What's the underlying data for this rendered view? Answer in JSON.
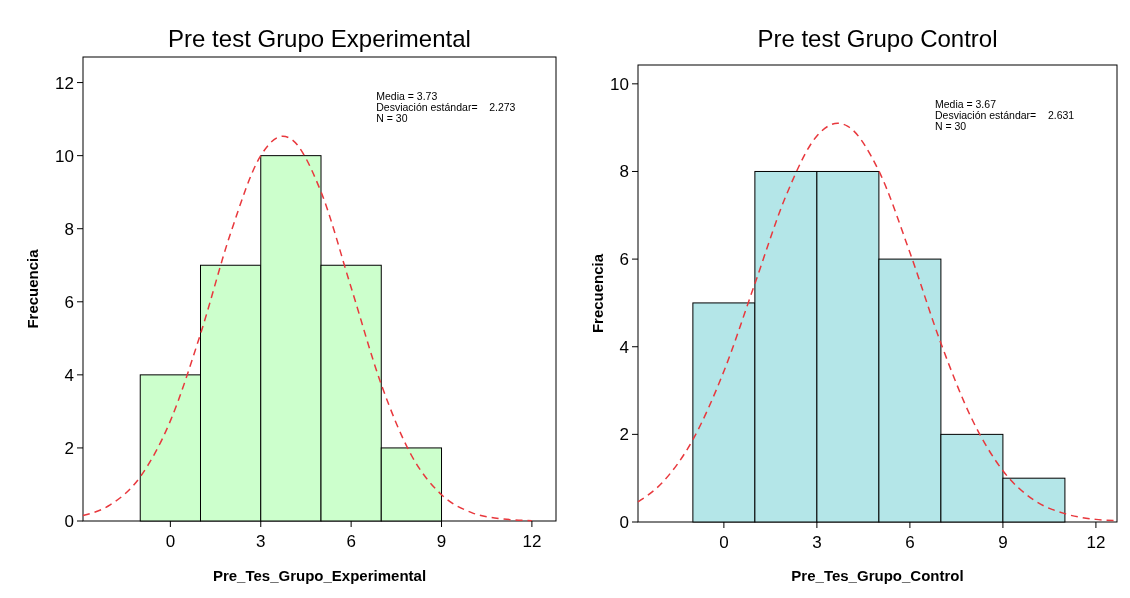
{
  "chart_data": [
    {
      "type": "histogram",
      "title": "Pre test Grupo Experimental",
      "xlabel": "Pre_Tes_Grupo_Experimental",
      "ylabel": "Frecuencia",
      "bins": [
        -1,
        1,
        3,
        5,
        7,
        9
      ],
      "values": [
        4,
        7,
        10,
        7,
        2
      ],
      "color": "#ccffcc",
      "series": [
        {
          "type": "line",
          "color": "#e8383d",
          "line_style": "dashed",
          "x": [
            -2.9,
            -2,
            -1,
            0,
            1,
            2,
            3,
            3.73,
            4,
            5,
            6,
            7,
            8,
            9,
            10,
            11,
            12
          ],
          "values": [
            0.15,
            0.44,
            1.21,
            2.74,
            5.12,
            7.88,
            10.0,
            10.53,
            10.46,
            9.01,
            6.39,
            3.74,
            1.8,
            0.72,
            0.23,
            0.06,
            0.01
          ]
        }
      ],
      "xlim": [
        -2.9,
        12.8
      ],
      "xticks": [
        0,
        3,
        6,
        9,
        12
      ],
      "ylim": [
        0,
        12.7
      ],
      "yticks": [
        0,
        2,
        4,
        6,
        8,
        10,
        12
      ],
      "annotations": [
        "Media = 3.73",
        "Desviación estándar=    2.273",
        "N = 30"
      ],
      "grid": false,
      "marker": "none"
    },
    {
      "type": "histogram",
      "title": "Pre test Grupo Control",
      "xlabel": "Pre_Tes_Grupo_Control",
      "ylabel": "Frecuencia",
      "bins": [
        -1,
        1,
        3,
        5,
        7,
        9,
        11
      ],
      "values": [
        5,
        8,
        8,
        6,
        2,
        1
      ],
      "color": "#b4e6e8",
      "series": [
        {
          "type": "line",
          "color": "#e8383d",
          "line_style": "dashed",
          "x": [
            -2.77,
            -2,
            -1,
            0,
            1,
            2,
            3,
            3.67,
            4,
            5,
            6,
            7,
            8,
            9,
            10,
            11,
            12,
            12.68
          ],
          "values": [
            0.46,
            0.89,
            1.88,
            3.44,
            5.44,
            7.44,
            8.81,
            9.1,
            9.03,
            8.01,
            6.15,
            4.08,
            2.35,
            1.17,
            0.5,
            0.19,
            0.06,
            0.03
          ]
        }
      ],
      "xlim": [
        -2.77,
        12.68
      ],
      "xticks": [
        0,
        3,
        6,
        9,
        12
      ],
      "ylim": [
        0,
        10.43
      ],
      "yticks": [
        0,
        2,
        4,
        6,
        8,
        10
      ],
      "annotations": [
        "Media = 3.67",
        "Desviación estándar=    2.631",
        "N = 30"
      ],
      "grid": false,
      "marker": "none"
    }
  ]
}
